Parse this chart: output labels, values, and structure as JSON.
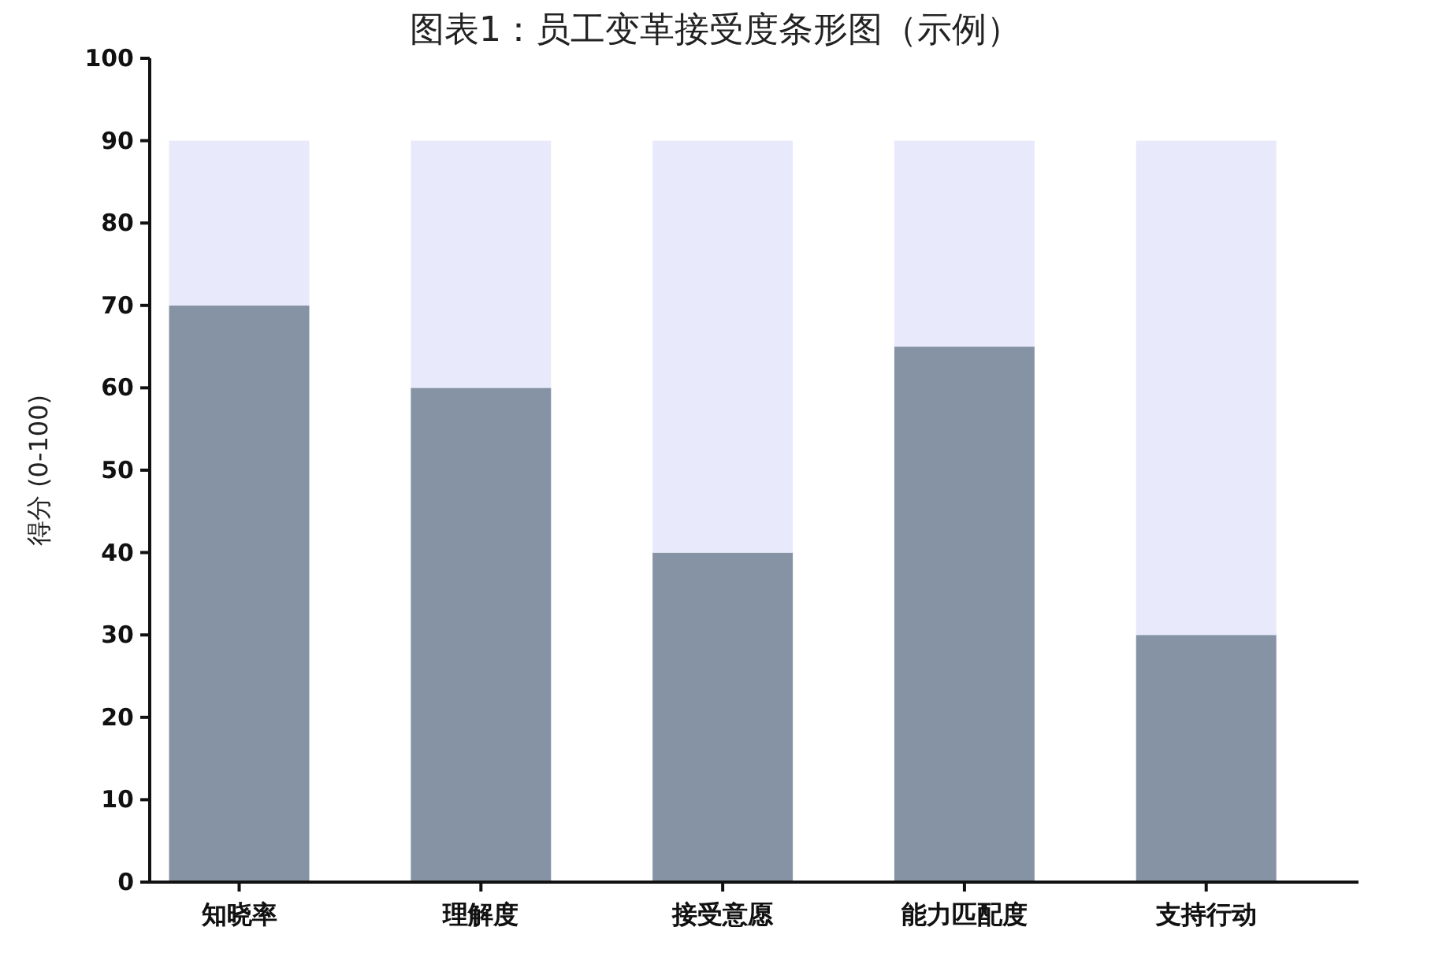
{
  "chart_data": {
    "type": "bar",
    "title": "图表1：员工变革接受度条形图（示例）",
    "ylabel": "得分 (0-100)",
    "categories": [
      "知晓率",
      "理解度",
      "接受意愿",
      "能力匹配度",
      "支持行动"
    ],
    "stacked": true,
    "series": [
      {
        "color": "#8593a5",
        "values": [
          70,
          60,
          40,
          65,
          30
        ]
      },
      {
        "color": "#e9e9fc",
        "values": [
          20,
          30,
          50,
          25,
          60
        ]
      }
    ],
    "ylim": [
      0,
      100
    ],
    "yticks": [
      0,
      10,
      20,
      30,
      40,
      50,
      60,
      70,
      80,
      90,
      100
    ],
    "grid": false
  }
}
